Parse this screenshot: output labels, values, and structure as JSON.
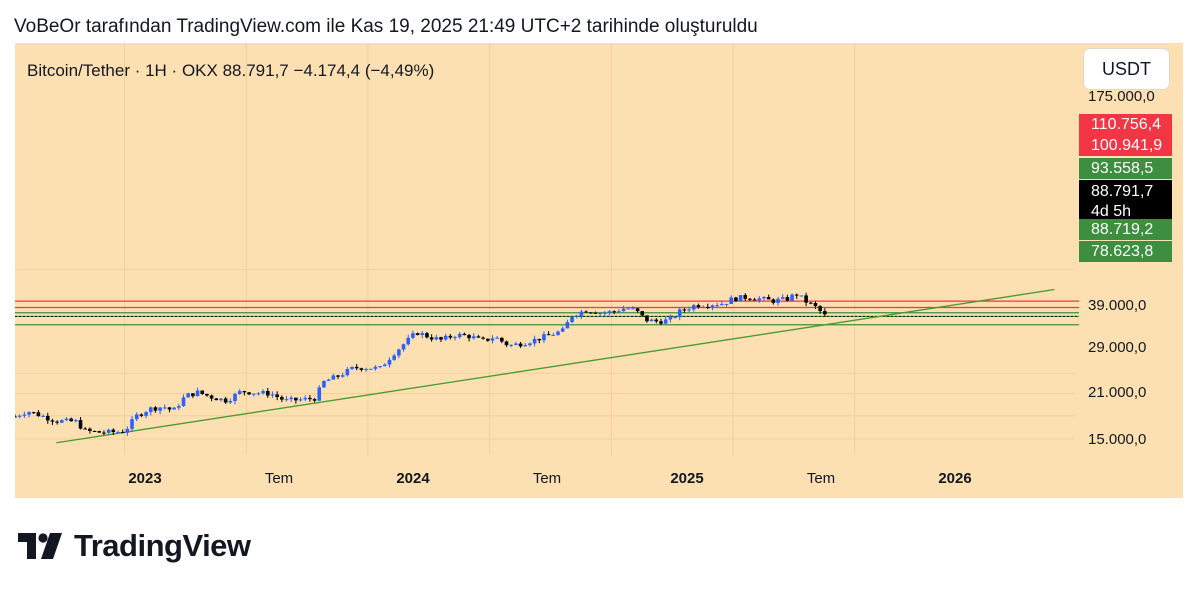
{
  "caption": "VoBeOr tarafından TradingView.com ile Kas 19, 2025 21:49 UTC+2 tarihinde oluşturuldu",
  "symbol_line": "Bitcoin/Tether · 1H · OKX  88.791,7  −4.174,4 (−4,49%)",
  "currency_button": "USDT",
  "brand": "TradingView",
  "colors": {
    "background": "#fde0b1",
    "up": "#2962ff",
    "down": "#000000",
    "red_line": "#f23645",
    "green_line": "#3d8f3f",
    "trend_line": "#4a9a2f"
  },
  "price_tags": {
    "r1": "110.756,4",
    "r2": "100.941,9",
    "g1": "93.558,5",
    "current_price": "88.791,7",
    "current_time": "4d 5h",
    "g2": "88.719,2",
    "g3": "78.623,8"
  },
  "chart_data": {
    "type": "candlestick",
    "y_scale": "log",
    "y_ticks": [
      {
        "label": "175.000,0",
        "value": 175000
      },
      {
        "label": "39.000,0",
        "value": 39000
      },
      {
        "label": "29.000,0",
        "value": 29000
      },
      {
        "label": "21.000,0",
        "value": 21000
      },
      {
        "label": "15.000,0",
        "value": 15000
      }
    ],
    "x_ticks": [
      {
        "label": "2023",
        "t": 2023.0,
        "bold": true
      },
      {
        "label": "Tem",
        "t": 2023.5,
        "bold": false
      },
      {
        "label": "2024",
        "t": 2024.0,
        "bold": true
      },
      {
        "label": "Tem",
        "t": 2024.5,
        "bold": false
      },
      {
        "label": "2025",
        "t": 2025.0,
        "bold": true
      },
      {
        "label": "Tem",
        "t": 2025.5,
        "bold": false
      },
      {
        "label": "2026",
        "t": 2026.0,
        "bold": true
      }
    ],
    "x_range": [
      2022.55,
      2026.88
    ],
    "horizontal_lines": [
      {
        "value": 110756.4,
        "color": "red"
      },
      {
        "value": 100941.9,
        "color": "red"
      },
      {
        "value": 93558.5,
        "color": "green"
      },
      {
        "value": 88719.2,
        "color": "green"
      },
      {
        "value": 78623.8,
        "color": "green"
      },
      {
        "value": 88791.7,
        "color": "dotted"
      }
    ],
    "trend_line": {
      "from": {
        "t": 2022.72,
        "price": 14200
      },
      "to": {
        "t": 2026.82,
        "price": 131000
      }
    },
    "closes": [
      [
        2022.55,
        20800
      ],
      [
        2022.6,
        22500
      ],
      [
        2022.66,
        21000
      ],
      [
        2022.72,
        19500
      ],
      [
        2022.8,
        19300
      ],
      [
        2022.84,
        16800
      ],
      [
        2022.9,
        16500
      ],
      [
        2022.96,
        16600
      ],
      [
        2023.0,
        16800
      ],
      [
        2023.05,
        21000
      ],
      [
        2023.1,
        23200
      ],
      [
        2023.16,
        24000
      ],
      [
        2023.2,
        22500
      ],
      [
        2023.25,
        28000
      ],
      [
        2023.3,
        29500
      ],
      [
        2023.36,
        27500
      ],
      [
        2023.42,
        26200
      ],
      [
        2023.48,
        30000
      ],
      [
        2023.54,
        29300
      ],
      [
        2023.6,
        29000
      ],
      [
        2023.66,
        26100
      ],
      [
        2023.72,
        26500
      ],
      [
        2023.78,
        27000
      ],
      [
        2023.82,
        34500
      ],
      [
        2023.88,
        37500
      ],
      [
        2023.94,
        42000
      ],
      [
        2023.98,
        42300
      ],
      [
        2024.05,
        41800
      ],
      [
        2024.1,
        51000
      ],
      [
        2024.16,
        62000
      ],
      [
        2024.2,
        70500
      ],
      [
        2024.25,
        66000
      ],
      [
        2024.3,
        63000
      ],
      [
        2024.36,
        68000
      ],
      [
        2024.42,
        66500
      ],
      [
        2024.47,
        62000
      ],
      [
        2024.52,
        66000
      ],
      [
        2024.58,
        58000
      ],
      [
        2024.63,
        60000
      ],
      [
        2024.69,
        63500
      ],
      [
        2024.75,
        68000
      ],
      [
        2024.8,
        72000
      ],
      [
        2024.84,
        91000
      ],
      [
        2024.9,
        97500
      ],
      [
        2024.96,
        93500
      ],
      [
        2025.0,
        94500
      ],
      [
        2025.06,
        100500
      ],
      [
        2025.1,
        96500
      ],
      [
        2025.14,
        84500
      ],
      [
        2025.18,
        82500
      ],
      [
        2025.24,
        84000
      ],
      [
        2025.28,
        95000
      ],
      [
        2025.34,
        104000
      ],
      [
        2025.4,
        106000
      ],
      [
        2025.46,
        107000
      ],
      [
        2025.5,
        115000
      ],
      [
        2025.56,
        117500
      ],
      [
        2025.62,
        114000
      ],
      [
        2025.66,
        111000
      ],
      [
        2025.72,
        114000
      ],
      [
        2025.76,
        123000
      ],
      [
        2025.8,
        110000
      ],
      [
        2025.84,
        101000
      ],
      [
        2025.88,
        88800
      ]
    ]
  }
}
